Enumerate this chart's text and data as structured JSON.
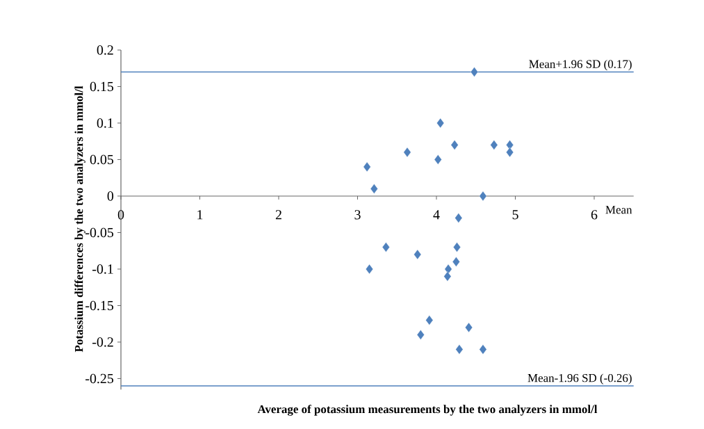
{
  "chart_data": {
    "type": "scatter",
    "xlabel": "Average of potassium measurements by the two analyzers in mmol/l",
    "ylabel": "Potassium differences by the two analyzers in mmol/l",
    "x": [
      4.48,
      4.05,
      3.63,
      4.02,
      4.23,
      4.73,
      4.93,
      4.93,
      3.12,
      3.21,
      4.59,
      4.28,
      3.36,
      4.26,
      3.76,
      4.25,
      3.15,
      4.15,
      4.14,
      3.91,
      4.41,
      3.8,
      4.29,
      4.59
    ],
    "series": [
      {
        "color": "#4f81bd",
        "values": [
          0.17,
          0.1,
          0.06,
          0.05,
          0.07,
          0.07,
          0.07,
          0.06,
          0.04,
          0.01,
          0.0,
          -0.03,
          -0.07,
          -0.07,
          -0.08,
          -0.09,
          -0.1,
          -0.1,
          -0.11,
          -0.17,
          -0.18,
          -0.19,
          -0.21,
          -0.21
        ]
      }
    ],
    "marker": "diamond",
    "xlim": [
      0,
      6.5
    ],
    "ylim": [
      -0.265,
      0.2
    ],
    "xticks": [
      0,
      1,
      2,
      3,
      4,
      5,
      6
    ],
    "yticks": [
      -0.25,
      -0.2,
      -0.15,
      -0.1,
      -0.05,
      0,
      0.05,
      0.1,
      0.15,
      0.2
    ],
    "ref_lines": [
      {
        "axis": "y",
        "value": 0.17,
        "label": "Mean+1.96 SD (0.17)",
        "color": "#4f81bd"
      },
      {
        "axis": "y",
        "value": -0.26,
        "label": "Mean-1.96 SD (-0.26)",
        "color": "#4f81bd"
      }
    ],
    "annotations": [
      "Mean"
    ],
    "grid": false
  }
}
